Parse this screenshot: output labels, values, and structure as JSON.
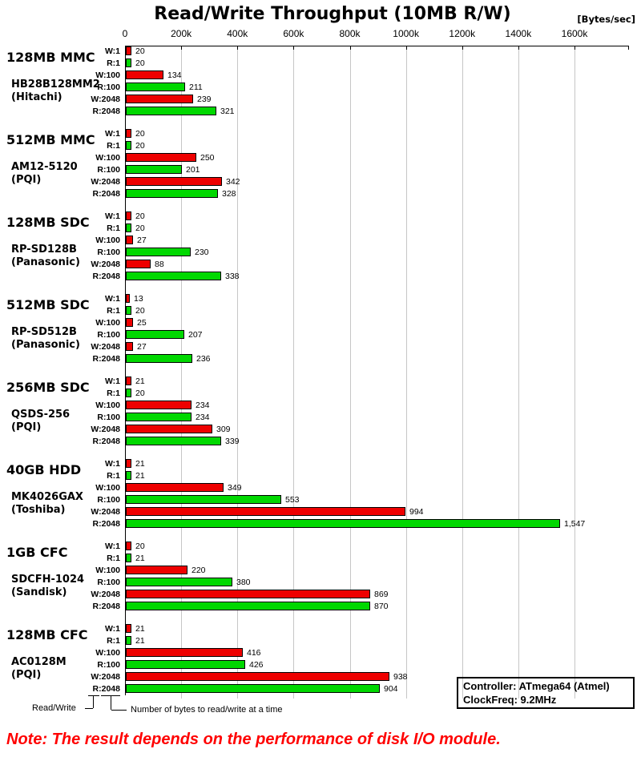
{
  "chart_data": {
    "type": "bar",
    "orientation": "horizontal",
    "title": "Read/Write Throughput (10MB R/W)",
    "unit_label": "[Bytes/sec]",
    "axis_ticks": [
      "0",
      "200k",
      "400k",
      "600k",
      "800k",
      "1000k",
      "1200k",
      "1400k",
      "1600k"
    ],
    "axis_max_k": 1600,
    "grid": true,
    "bar_labels": [
      "W:1",
      "R:1",
      "W:100",
      "R:100",
      "W:2048",
      "R:2048"
    ],
    "colors": {
      "write_bar": "#ee0000",
      "read_bar": "#00d800",
      "gridline": "#c6c6c6",
      "note_text": "#ff0000"
    },
    "groups": [
      {
        "name": "128MB MMC",
        "model": "HB28B128MM2",
        "brand": "(Hitachi)",
        "values": [
          20,
          20,
          134,
          211,
          239,
          321
        ],
        "display": [
          "20",
          "20",
          "134",
          "211",
          "239",
          "321"
        ]
      },
      {
        "name": "512MB MMC",
        "model": "AM12-5120",
        "brand": "(PQI)",
        "values": [
          20,
          20,
          250,
          201,
          342,
          328
        ],
        "display": [
          "20",
          "20",
          "250",
          "201",
          "342",
          "328"
        ]
      },
      {
        "name": "128MB SDC",
        "model": "RP-SD128B",
        "brand": "(Panasonic)",
        "values": [
          20,
          20,
          27,
          230,
          88,
          338
        ],
        "display": [
          "20",
          "20",
          "27",
          "230",
          "88",
          "338"
        ]
      },
      {
        "name": "512MB SDC",
        "model": "RP-SD512B",
        "brand": "(Panasonic)",
        "values": [
          13,
          20,
          25,
          207,
          27,
          236
        ],
        "display": [
          "13",
          "20",
          "25",
          "207",
          "27",
          "236"
        ]
      },
      {
        "name": "256MB SDC",
        "model": "QSDS-256",
        "brand": "(PQI)",
        "values": [
          21,
          20,
          234,
          234,
          309,
          339
        ],
        "display": [
          "21",
          "20",
          "234",
          "234",
          "309",
          "339"
        ]
      },
      {
        "name": "40GB HDD",
        "model": "MK4026GAX",
        "brand": "(Toshiba)",
        "values": [
          21,
          21,
          349,
          553,
          994,
          1547
        ],
        "display": [
          "21",
          "21",
          "349",
          "553",
          "994",
          "1,547"
        ]
      },
      {
        "name": "1GB CFC",
        "model": "SDCFH-1024",
        "brand": "(Sandisk)",
        "values": [
          20,
          21,
          220,
          380,
          869,
          870
        ],
        "display": [
          "20",
          "21",
          "220",
          "380",
          "869",
          "870"
        ]
      },
      {
        "name": "128MB CFC",
        "model": "AC0128M",
        "brand": "(PQI)",
        "values": [
          21,
          21,
          416,
          426,
          938,
          904
        ],
        "display": [
          "21",
          "21",
          "416",
          "426",
          "938",
          "904"
        ]
      }
    ]
  },
  "footer": {
    "read_write_label": "Read/Write",
    "bytes_label": "Number of bytes to read/write at a time"
  },
  "info_box": {
    "controller": "Controller: ATmega64 (Atmel)",
    "clock": "ClockFreq: 9.2MHz"
  },
  "note": "Note: The result depends on the performance of disk I/O module."
}
